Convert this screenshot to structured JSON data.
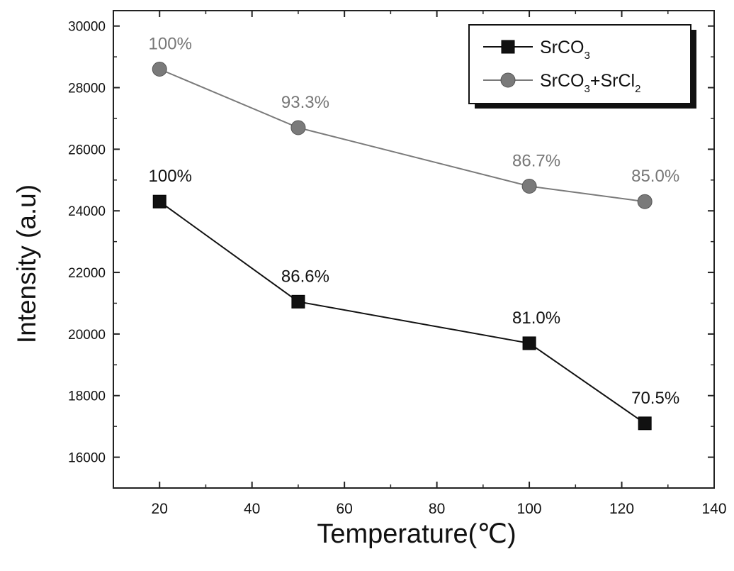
{
  "chart_data": {
    "type": "line",
    "title": "",
    "xlabel": "Temperature(℃)",
    "ylabel": "Intensity (a.u)",
    "xlim": [
      10,
      140
    ],
    "ylim": [
      15000,
      30500
    ],
    "x_ticks": [
      20,
      40,
      60,
      80,
      100,
      120,
      140
    ],
    "y_ticks": [
      16000,
      18000,
      20000,
      22000,
      24000,
      26000,
      28000,
      30000
    ],
    "grid": false,
    "legend_position": "top-right",
    "series": [
      {
        "name": "SrCO3",
        "legend_main": "SrCO",
        "legend_sub": "3",
        "marker": "square",
        "color": "#111111",
        "x": [
          20,
          50,
          100,
          125
        ],
        "y": [
          24300,
          21050,
          19700,
          17100
        ],
        "labels": [
          "100%",
          "86.6%",
          "81.0%",
          "70.5%"
        ]
      },
      {
        "name": "SrCO3+SrCl2",
        "legend_parts": [
          "SrCO",
          "3",
          "+SrCl",
          "2"
        ],
        "marker": "circle",
        "color": "#7a7a7a",
        "x": [
          20,
          50,
          100,
          125
        ],
        "y": [
          28600,
          26700,
          24800,
          24300
        ],
        "labels": [
          "100%",
          "93.3%",
          "86.7%",
          "85.0%"
        ]
      }
    ]
  }
}
